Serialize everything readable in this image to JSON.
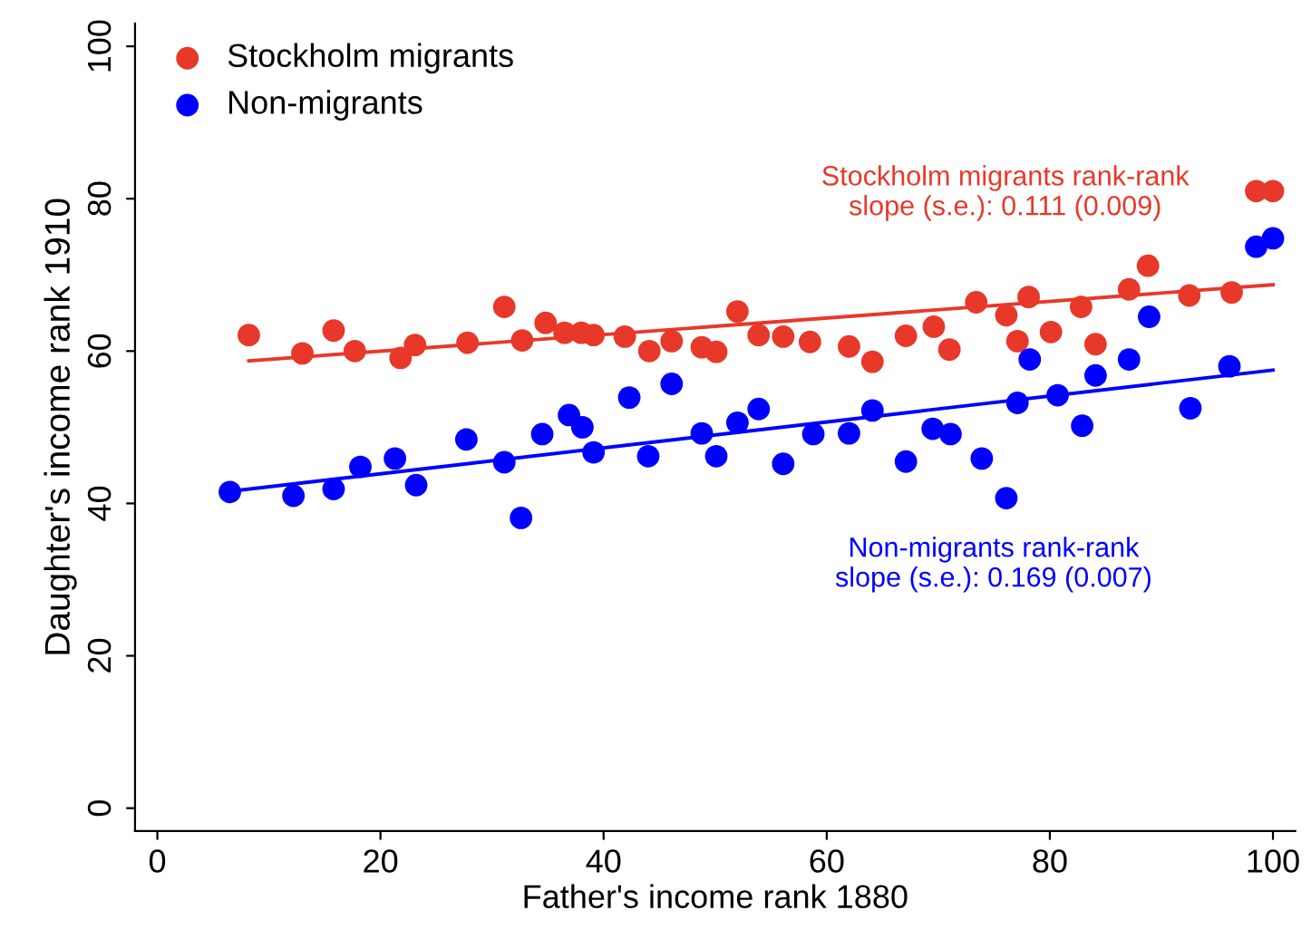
{
  "chart_data": {
    "type": "scatter",
    "xlabel": "Father's income rank 1880",
    "ylabel": "Daughter's income rank 1910",
    "xlim": [
      -2,
      102
    ],
    "ylim": [
      -3,
      103
    ],
    "xticks": [
      0,
      20,
      40,
      60,
      80,
      100
    ],
    "yticks": [
      0,
      20,
      40,
      60,
      80,
      100
    ],
    "grid": false,
    "legend": "top left",
    "annotations": [
      "Stockholm migrants rank-rank\nslope (s.e.): 0.111 (0.009)",
      "Non-migrants rank-rank\nslope (s.e.): 0.169 (0.007)"
    ],
    "series": [
      {
        "name": "Stockholm migrants",
        "marker": "circle",
        "color": "#e8382a",
        "x": [
          8.2,
          13.0,
          15.8,
          17.7,
          21.8,
          23.1,
          27.8,
          31.1,
          32.7,
          34.8,
          36.5,
          38.0,
          39.1,
          41.9,
          44.1,
          46.1,
          48.8,
          50.1,
          52.0,
          53.9,
          56.1,
          58.5,
          62.0,
          64.1,
          67.1,
          69.6,
          71.0,
          73.4,
          76.1,
          77.1,
          78.1,
          80.1,
          82.8,
          84.1,
          87.1,
          88.8,
          92.5,
          96.3,
          98.5,
          100
        ],
        "values": [
          62.1,
          59.7,
          62.7,
          60.0,
          59.1,
          60.8,
          61.1,
          65.8,
          61.4,
          63.7,
          62.4,
          62.4,
          62.1,
          61.9,
          60.0,
          61.3,
          60.5,
          59.9,
          65.2,
          62.1,
          61.9,
          61.2,
          60.6,
          58.6,
          62.0,
          63.2,
          60.2,
          66.4,
          64.7,
          61.3,
          67.1,
          62.5,
          65.8,
          60.9,
          68.1,
          71.2,
          67.3,
          67.7,
          81.0,
          81.0
        ]
      },
      {
        "name": "Non-migrants",
        "marker": "circle",
        "color": "#0000ff",
        "x": [
          6.5,
          12.2,
          15.8,
          18.2,
          21.3,
          23.2,
          27.7,
          31.1,
          32.6,
          34.5,
          36.9,
          38.1,
          39.1,
          42.3,
          44.0,
          46.1,
          48.8,
          50.1,
          52.0,
          53.9,
          56.1,
          58.8,
          62.0,
          64.1,
          67.1,
          69.5,
          71.1,
          73.9,
          76.1,
          77.1,
          78.2,
          80.7,
          82.9,
          84.1,
          87.1,
          88.9,
          92.6,
          96.1,
          98.5,
          100
        ],
        "values": [
          41.5,
          41.0,
          41.9,
          44.8,
          45.9,
          42.4,
          48.4,
          45.4,
          38.1,
          49.1,
          51.6,
          50.0,
          46.7,
          53.9,
          46.2,
          55.7,
          49.2,
          46.2,
          50.6,
          52.4,
          45.2,
          49.1,
          49.2,
          52.2,
          45.5,
          49.8,
          49.1,
          45.9,
          40.7,
          53.2,
          58.9,
          54.2,
          50.2,
          56.8,
          58.9,
          64.5,
          52.5,
          58.0,
          73.7,
          74.8
        ]
      },
      {
        "type": "line",
        "marker": "none",
        "color": "#e8382a",
        "x": [
          8.2,
          100
        ],
        "values": [
          58.7,
          68.7
        ]
      },
      {
        "type": "line",
        "marker": "none",
        "color": "#0000ff",
        "x": [
          6.5,
          100
        ],
        "values": [
          41.6,
          57.5
        ]
      }
    ]
  }
}
